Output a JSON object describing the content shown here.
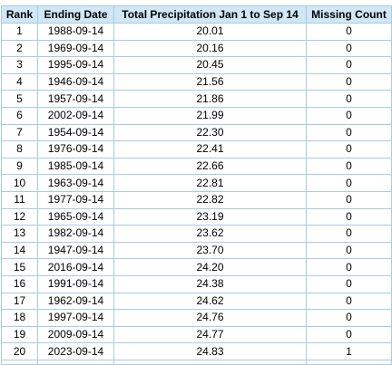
{
  "table": {
    "headers": [
      "Rank",
      "Ending Date",
      "Total Precipitation Jan 1 to Sep 14",
      "Missing Count"
    ],
    "rows": [
      {
        "rank": "1",
        "date": "1988-09-14",
        "precip": "20.01",
        "missing": "0"
      },
      {
        "rank": "2",
        "date": "1969-09-14",
        "precip": "20.16",
        "missing": "0"
      },
      {
        "rank": "3",
        "date": "1995-09-14",
        "precip": "20.45",
        "missing": "0"
      },
      {
        "rank": "4",
        "date": "1946-09-14",
        "precip": "21.56",
        "missing": "0"
      },
      {
        "rank": "5",
        "date": "1957-09-14",
        "precip": "21.86",
        "missing": "0"
      },
      {
        "rank": "6",
        "date": "2002-09-14",
        "precip": "21.99",
        "missing": "0"
      },
      {
        "rank": "7",
        "date": "1954-09-14",
        "precip": "22.30",
        "missing": "0"
      },
      {
        "rank": "8",
        "date": "1976-09-14",
        "precip": "22.41",
        "missing": "0"
      },
      {
        "rank": "9",
        "date": "1985-09-14",
        "precip": "22.66",
        "missing": "0"
      },
      {
        "rank": "10",
        "date": "1963-09-14",
        "precip": "22.81",
        "missing": "0"
      },
      {
        "rank": "11",
        "date": "1977-09-14",
        "precip": "22.82",
        "missing": "0"
      },
      {
        "rank": "12",
        "date": "1965-09-14",
        "precip": "23.19",
        "missing": "0"
      },
      {
        "rank": "13",
        "date": "1982-09-14",
        "precip": "23.62",
        "missing": "0"
      },
      {
        "rank": "14",
        "date": "1947-09-14",
        "precip": "23.70",
        "missing": "0"
      },
      {
        "rank": "15",
        "date": "2016-09-14",
        "precip": "24.20",
        "missing": "0"
      },
      {
        "rank": "16",
        "date": "1991-09-14",
        "precip": "24.38",
        "missing": "0"
      },
      {
        "rank": "17",
        "date": "1962-09-14",
        "precip": "24.62",
        "missing": "0"
      },
      {
        "rank": "18",
        "date": "1997-09-14",
        "precip": "24.76",
        "missing": "0"
      },
      {
        "rank": "19",
        "date": "2009-09-14",
        "precip": "24.77",
        "missing": "0"
      },
      {
        "rank": "20",
        "date": "2023-09-14",
        "precip": "24.83",
        "missing": "1"
      }
    ]
  },
  "colors": {
    "header_bg": "#cfe7f6",
    "border": "#a9cbe0"
  }
}
